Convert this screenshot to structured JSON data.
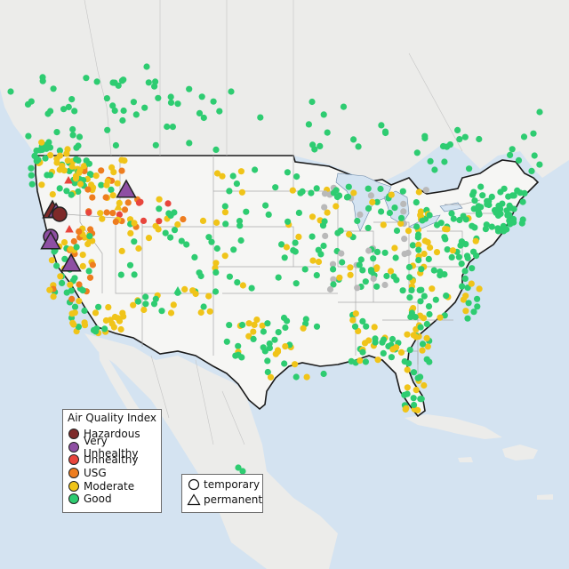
{
  "legend": {
    "title": "Air Quality Index",
    "categories": [
      {
        "label": "Hazardous",
        "color": "#7e2a2a"
      },
      {
        "label": "Very Unhealthy",
        "color": "#8e4fa3"
      },
      {
        "label": "Unhealthy",
        "color": "#e8453c"
      },
      {
        "label": "USG",
        "color": "#ee7d1f"
      },
      {
        "label": "Moderate",
        "color": "#f0c419"
      },
      {
        "label": "Good",
        "color": "#2ecc71"
      }
    ]
  },
  "shape_legend": {
    "temporary": "temporary",
    "permanent": "permanent"
  },
  "colors": {
    "water": "#d4e3f1",
    "land": "#ececea",
    "us_land": "#f6f6f4",
    "border": "#1a1a1a",
    "state_line": "#a9a9a9",
    "terrain": "#dcd8cf",
    "no_data": "#b9b9b9"
  }
}
